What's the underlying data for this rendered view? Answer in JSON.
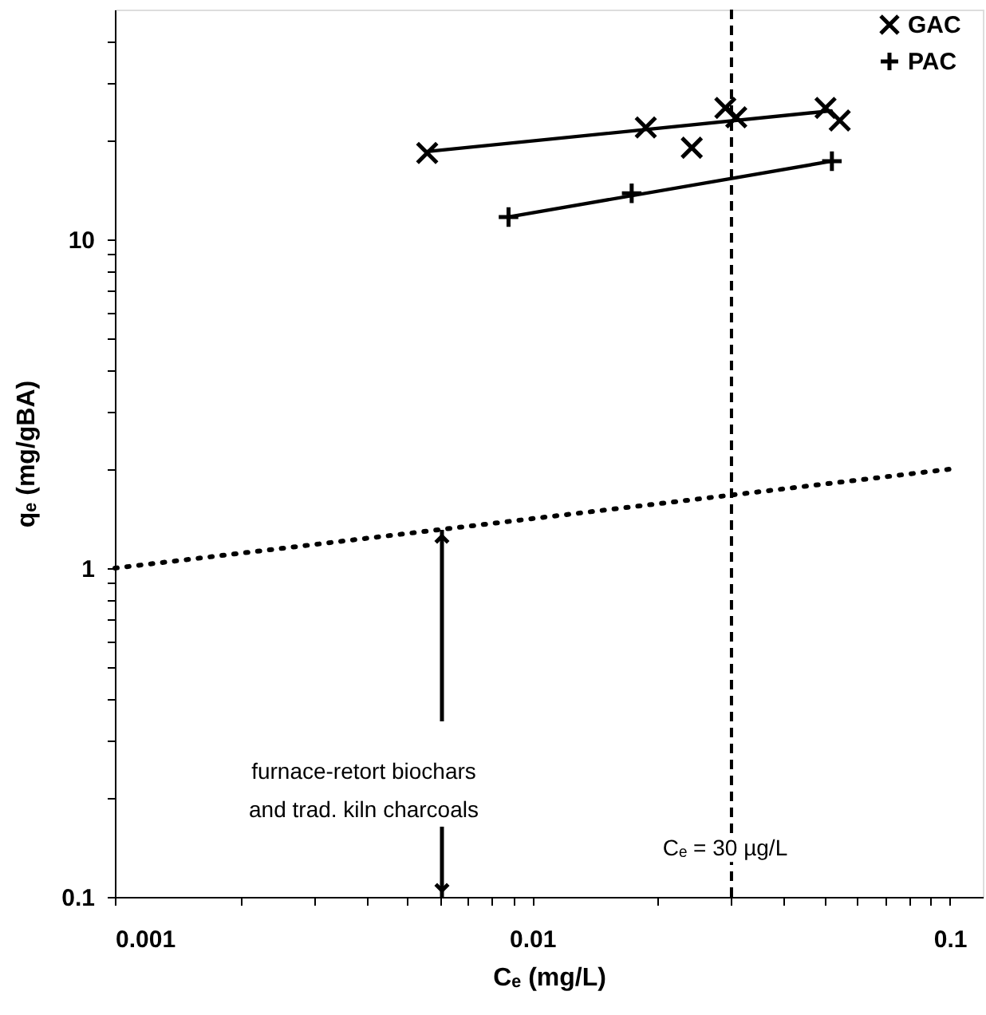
{
  "chart_data": {
    "type": "scatter",
    "xlabel": "Cₑ (mg/L)",
    "ylabel": "qₑ (mg/gBA)",
    "log": "xy",
    "grid": false,
    "legend": "top right",
    "xlim": [
      0.001,
      0.12
    ],
    "ylim": [
      0.1,
      50
    ],
    "xticks": [
      0.001,
      {
        "value": 0.002,
        "label": null
      },
      {
        "value": 0.003,
        "label": null
      },
      {
        "value": 0.004,
        "label": null
      },
      {
        "value": 0.005,
        "label": null
      },
      {
        "value": 0.006,
        "label": null
      },
      {
        "value": 0.007,
        "label": null
      },
      {
        "value": 0.008,
        "label": null
      },
      {
        "value": 0.009,
        "label": null
      },
      0.01,
      {
        "value": 0.02,
        "label": null
      },
      {
        "value": 0.03,
        "label": null
      },
      {
        "value": 0.04,
        "label": null
      },
      {
        "value": 0.05,
        "label": null
      },
      {
        "value": 0.06,
        "label": null
      },
      {
        "value": 0.07,
        "label": null
      },
      {
        "value": 0.08,
        "label": null
      },
      {
        "value": 0.09,
        "label": null
      },
      0.1
    ],
    "yticks": [
      0.1,
      {
        "value": 0.2,
        "label": null
      },
      {
        "value": 0.3,
        "label": null
      },
      {
        "value": 0.4,
        "label": null
      },
      {
        "value": 0.5,
        "label": null
      },
      {
        "value": 0.6,
        "label": null
      },
      {
        "value": 0.7,
        "label": null
      },
      {
        "value": 0.8,
        "label": null
      },
      {
        "value": 0.9,
        "label": null
      },
      1,
      {
        "value": 2,
        "label": null
      },
      {
        "value": 3,
        "label": null
      },
      {
        "value": 4,
        "label": null
      },
      {
        "value": 5,
        "label": null
      },
      {
        "value": 6,
        "label": null
      },
      {
        "value": 7,
        "label": null
      },
      {
        "value": 8,
        "label": null
      },
      {
        "value": 9,
        "label": null
      },
      10,
      {
        "value": 20,
        "label": null
      },
      {
        "value": 30,
        "label": null
      },
      {
        "value": 40,
        "label": null
      }
    ],
    "series": [
      {
        "name": "GAC",
        "marker": "cross",
        "color": "#000000",
        "x": [
          0.0056,
          0.0187,
          0.0241,
          0.029,
          0.0308,
          0.0504,
          0.0545
        ],
        "values": [
          18.3,
          21.9,
          19.0,
          25.1,
          23.5,
          25.1,
          23.0
        ]
      },
      {
        "name": "PAC",
        "marker": "plus",
        "color": "#000000",
        "x": [
          0.00877,
          0.0173,
          0.0522
        ],
        "values": [
          11.7,
          13.8,
          17.3
        ]
      },
      {
        "type": "line",
        "color": "#000000",
        "line_style": "solid",
        "x": [
          0.0056,
          0.052
        ],
        "values": [
          18.5,
          24.6
        ]
      },
      {
        "type": "line",
        "color": "#000000",
        "line_style": "solid",
        "x": [
          0.00877,
          0.0522
        ],
        "values": [
          11.7,
          17.3
        ]
      },
      {
        "type": "line",
        "color": "#000000",
        "line_style": "dotted",
        "x": [
          0.001,
          0.1
        ],
        "values": [
          1,
          2
        ]
      }
    ],
    "ref_lines": [
      {
        "axis": "x",
        "value": 0.03,
        "label": "Cₑ = 30 µg/L",
        "color": "#000000",
        "line_style": "dashed"
      }
    ],
    "annotations": [
      "furnace-retort biochars\nand trad. kiln charcoals"
    ]
  }
}
